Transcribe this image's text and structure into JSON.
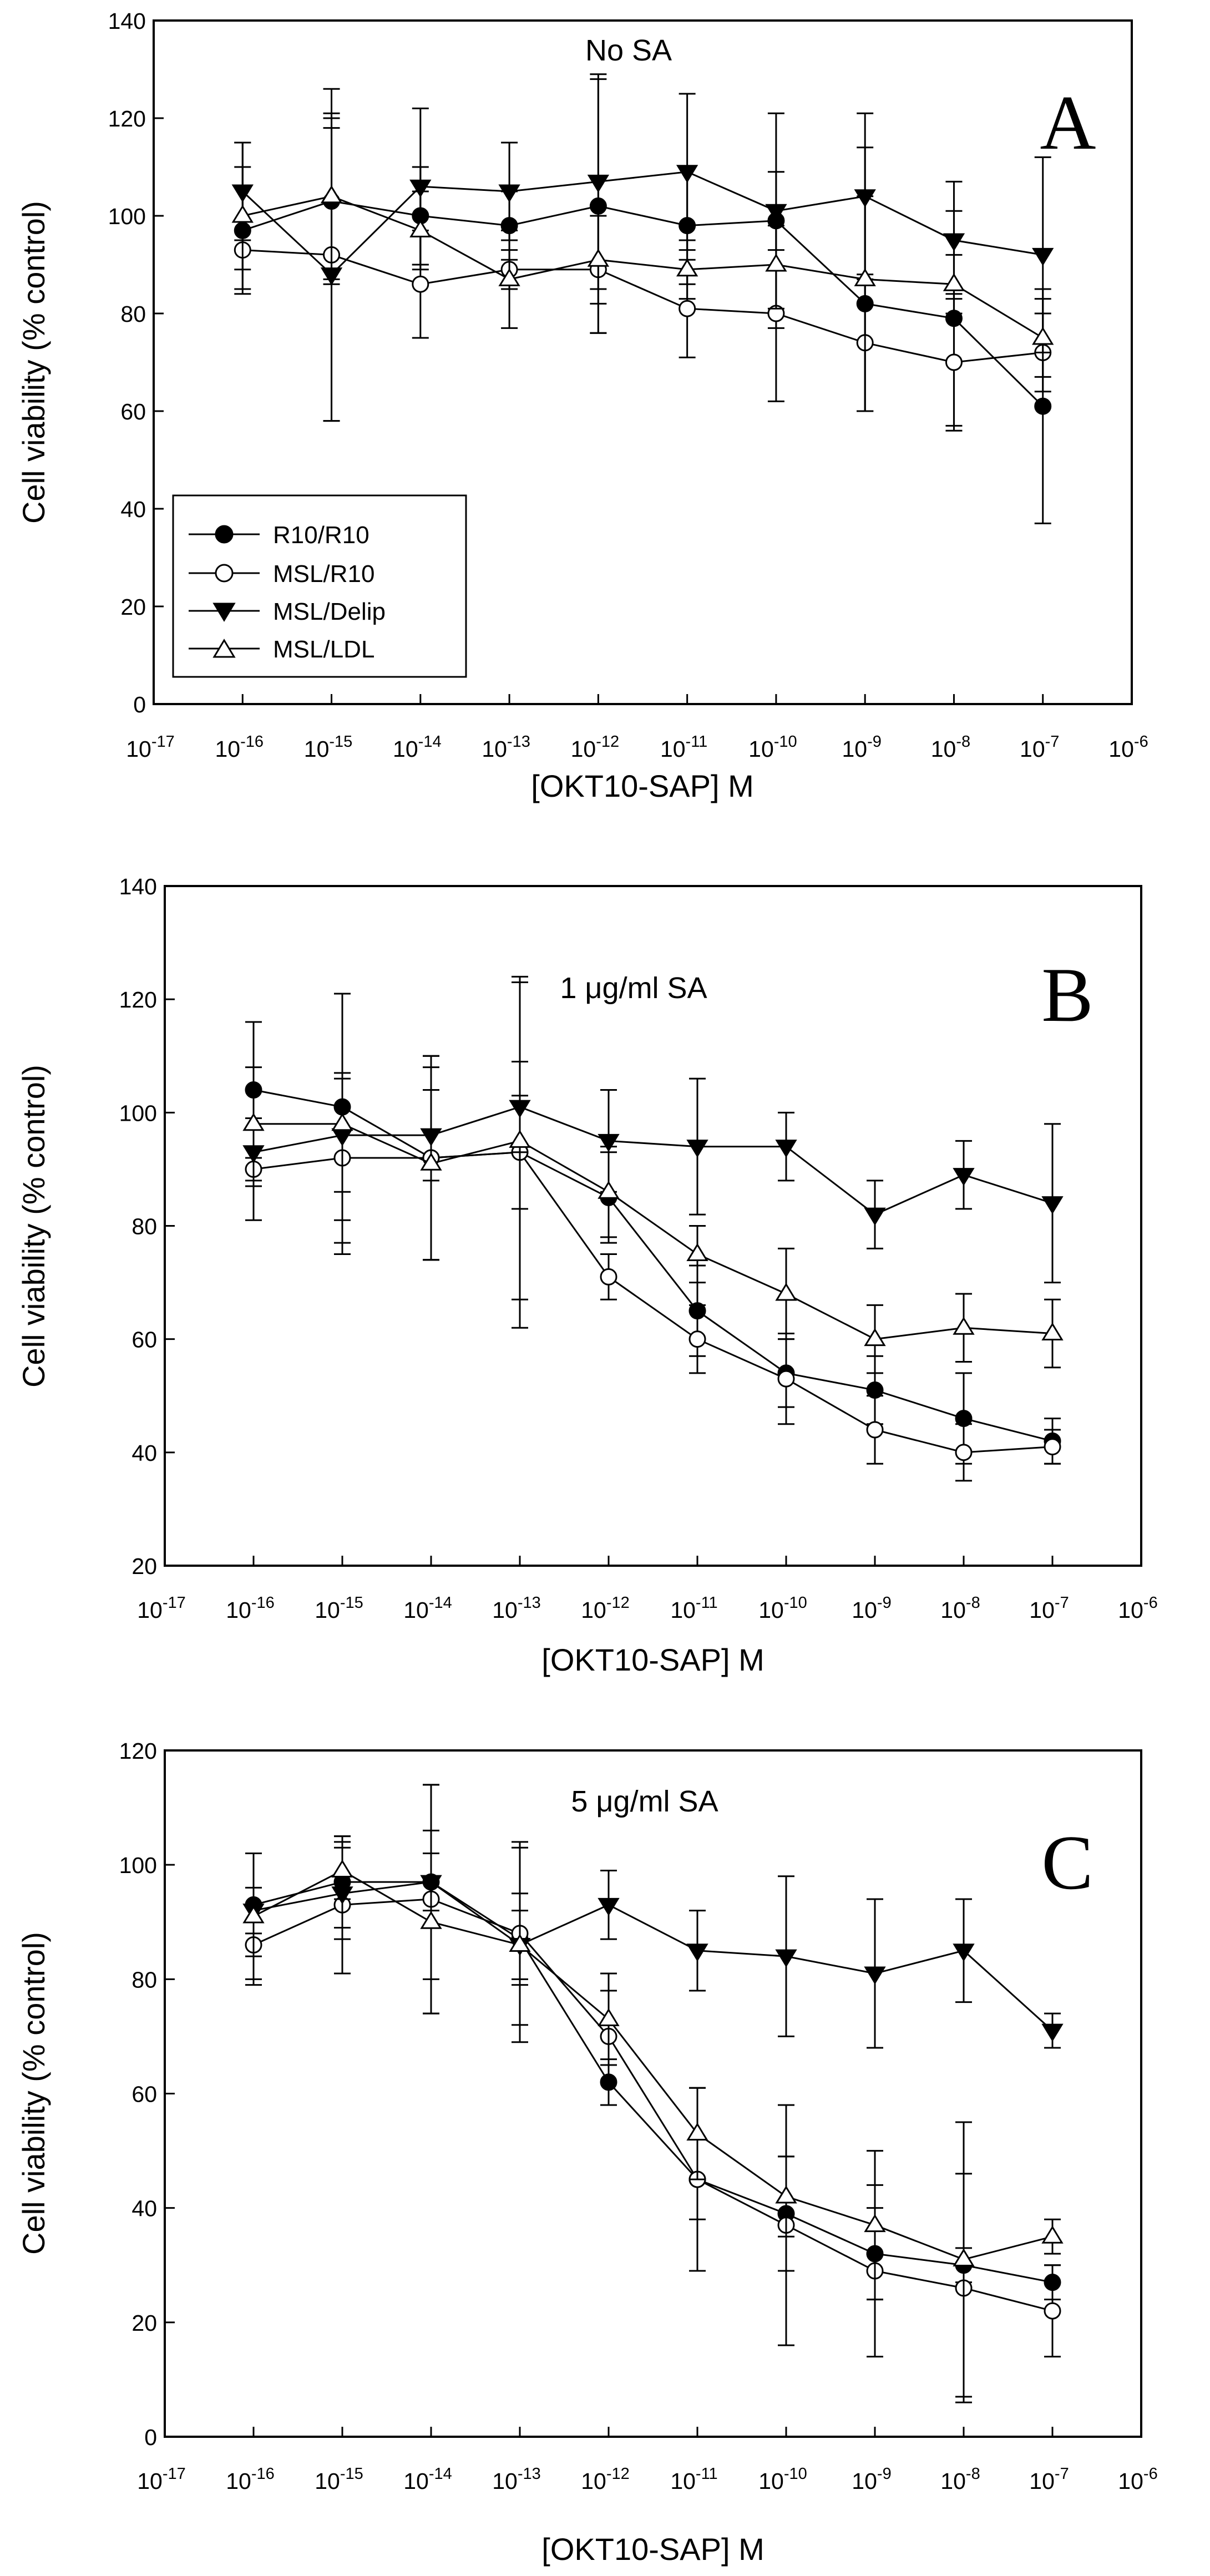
{
  "chart_data": [
    {
      "type": "line",
      "panel": "A",
      "annotation": "No SA",
      "xlabel": "[OKT10-SAP] M",
      "ylabel": "Cell viability (% control)",
      "x_exponents": [
        -16,
        -15,
        -14,
        -13,
        -12,
        -11,
        -10,
        -9,
        -8,
        -7
      ],
      "xlim_exponents": [
        -17,
        -6
      ],
      "ylim": [
        0,
        140
      ],
      "yticks": [
        0,
        20,
        40,
        60,
        80,
        100,
        120,
        140
      ],
      "legend": {
        "placement": "lower-left",
        "entries": [
          "R10/R10",
          "MSL/R10",
          "MSL/Delip",
          "MSL/LDL"
        ]
      },
      "series": [
        {
          "name": "R10/R10",
          "marker": "circle-filled",
          "values": [
            97,
            103,
            100,
            98,
            102,
            98,
            99,
            82,
            79,
            61
          ],
          "errors": [
            13,
            17,
            10,
            7,
            26,
            12,
            22,
            22,
            22,
            24
          ]
        },
        {
          "name": "MSL/R10",
          "marker": "circle-open",
          "values": [
            93,
            92,
            86,
            89,
            89,
            81,
            80,
            74,
            70,
            72
          ],
          "errors": [
            4,
            34,
            11,
            4,
            13,
            10,
            18,
            14,
            14,
            8
          ]
        },
        {
          "name": "MSL/Delip",
          "marker": "triangle-down-filled",
          "values": [
            105,
            88,
            106,
            105,
            107,
            109,
            101,
            104,
            95,
            92
          ],
          "errors": [
            10,
            30,
            16,
            10,
            22,
            16,
            8,
            17,
            12,
            20
          ]
        },
        {
          "name": "MSL/LDL",
          "marker": "triangle-up-open",
          "values": [
            100,
            104,
            97,
            87,
            91,
            89,
            90,
            87,
            86,
            75
          ],
          "errors": [
            15,
            17,
            8,
            10,
            9,
            6,
            9,
            27,
            6,
            8
          ]
        }
      ]
    },
    {
      "type": "line",
      "panel": "B",
      "annotation": "1 μg/ml SA",
      "xlabel": "[OKT10-SAP] M",
      "ylabel": "Cell viability (% control)",
      "x_exponents": [
        -16,
        -15,
        -14,
        -13,
        -12,
        -11,
        -10,
        -9,
        -8,
        -7
      ],
      "xlim_exponents": [
        -17,
        -6
      ],
      "ylim": [
        20,
        140
      ],
      "yticks": [
        20,
        40,
        60,
        80,
        100,
        120,
        140
      ],
      "series": [
        {
          "name": "R10/R10",
          "marker": "circle-filled",
          "values": [
            104,
            101,
            92,
            93,
            85,
            65,
            54,
            51,
            46,
            42
          ],
          "errors": [
            12,
            20,
            18,
            10,
            8,
            8,
            6,
            6,
            8,
            4
          ]
        },
        {
          "name": "MSL/R10",
          "marker": "circle-open",
          "values": [
            90,
            92,
            92,
            93,
            71,
            60,
            53,
            44,
            40,
            41
          ],
          "errors": [
            9,
            15,
            18,
            31,
            4,
            6,
            8,
            6,
            5,
            3
          ]
        },
        {
          "name": "MSL/Delip",
          "marker": "triangle-down-filled",
          "values": [
            93,
            96,
            96,
            101,
            95,
            94,
            94,
            82,
            89,
            84
          ],
          "errors": [
            6,
            10,
            8,
            8,
            9,
            12,
            6,
            6,
            6,
            14
          ]
        },
        {
          "name": "MSL/LDL",
          "marker": "triangle-up-open",
          "values": [
            98,
            98,
            91,
            95,
            86,
            75,
            68,
            60,
            62,
            61
          ],
          "errors": [
            10,
            23,
            17,
            28,
            8,
            5,
            8,
            6,
            6,
            6
          ]
        }
      ]
    },
    {
      "type": "line",
      "panel": "C",
      "annotation": "5 μg/ml SA",
      "xlabel": "[OKT10-SAP] M",
      "ylabel": "Cell viability (% control)",
      "x_exponents": [
        -16,
        -15,
        -14,
        -13,
        -12,
        -11,
        -10,
        -9,
        -8,
        -7
      ],
      "xlim_exponents": [
        -17,
        -6
      ],
      "ylim": [
        0,
        120
      ],
      "yticks": [
        0,
        20,
        40,
        60,
        80,
        100,
        120
      ],
      "series": [
        {
          "name": "R10/R10",
          "marker": "circle-filled",
          "values": [
            93,
            97,
            97,
            87,
            62,
            45,
            39,
            32,
            30,
            27
          ],
          "errors": [
            9,
            8,
            17,
            8,
            4,
            7,
            10,
            8,
            3,
            3
          ]
        },
        {
          "name": "MSL/R10",
          "marker": "circle-open",
          "values": [
            86,
            93,
            94,
            88,
            70,
            45,
            37,
            29,
            26,
            22
          ],
          "errors": [
            7,
            12,
            20,
            16,
            8,
            16,
            21,
            15,
            20,
            8
          ]
        },
        {
          "name": "MSL/Delip",
          "marker": "triangle-down-filled",
          "values": [
            92,
            95,
            97,
            86,
            93,
            85,
            84,
            81,
            85,
            71
          ],
          "errors": [
            4,
            8,
            5,
            6,
            6,
            7,
            14,
            13,
            9,
            3
          ]
        },
        {
          "name": "MSL/LDL",
          "marker": "triangle-up-open",
          "values": [
            91,
            99,
            90,
            86,
            73,
            53,
            42,
            37,
            31,
            35
          ],
          "errors": [
            11,
            5,
            16,
            17,
            8,
            8,
            7,
            13,
            24,
            3
          ]
        }
      ]
    }
  ]
}
